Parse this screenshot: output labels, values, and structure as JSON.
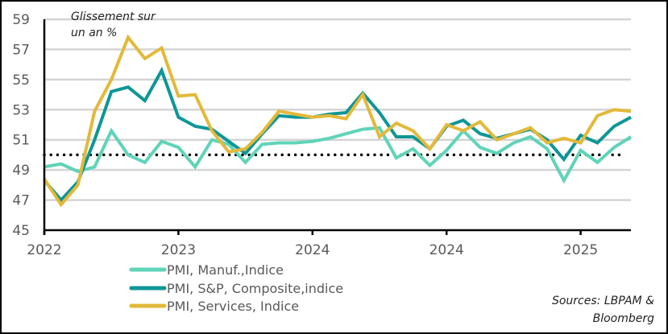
{
  "chart_data": {
    "type": "line",
    "title": "",
    "annotation": "Glissement sur un an %",
    "annotation_lines": [
      "Glissement sur",
      "un an %"
    ],
    "xlabel": "",
    "ylabel": "",
    "ylim": [
      45,
      59
    ],
    "yticks": [
      45,
      47,
      49,
      51,
      53,
      55,
      57,
      59
    ],
    "ytick_labels": [
      "45",
      "47",
      "49",
      "51",
      "53",
      "55",
      "57",
      "59"
    ],
    "xtick_labels": [
      "2022",
      "2023",
      "2024",
      "2024",
      "2025"
    ],
    "xtick_positions": [
      0,
      8,
      16,
      24,
      32
    ],
    "n_points": 36,
    "grid": "horizontal",
    "reference_line": {
      "value": 50,
      "style": "dotted",
      "color": "#000000"
    },
    "series": [
      {
        "name": "PMI, Manuf.,Indice",
        "color": "#5fd4b8",
        "values": [
          49.2,
          49.4,
          48.9,
          49.2,
          51.6,
          50.0,
          49.5,
          50.9,
          50.5,
          49.2,
          51.0,
          50.7,
          49.5,
          50.7,
          50.8,
          50.8,
          50.9,
          51.1,
          51.4,
          51.7,
          51.8,
          49.8,
          50.4,
          49.3,
          50.3,
          51.6,
          50.5,
          50.1,
          50.8,
          51.2,
          50.4,
          48.3,
          50.3,
          49.5,
          50.5,
          51.2
        ]
      },
      {
        "name": "PMI, S&P, Composite,indice",
        "color": "#0e9696",
        "values": [
          48.3,
          47.0,
          48.2,
          51.0,
          54.2,
          54.5,
          53.6,
          55.6,
          52.5,
          51.9,
          51.7,
          50.9,
          50.1,
          51.4,
          52.6,
          52.5,
          52.5,
          52.7,
          52.8,
          54.1,
          52.8,
          51.2,
          51.2,
          50.4,
          51.9,
          52.3,
          51.4,
          51.1,
          51.4,
          51.7,
          51.0,
          49.7,
          51.3,
          50.8,
          51.9,
          52.5
        ]
      },
      {
        "name": "PMI, Services, Indice",
        "color": "#e3b93b",
        "values": [
          48.4,
          46.7,
          48.0,
          52.9,
          55.0,
          57.8,
          56.4,
          57.1,
          53.9,
          54.0,
          51.6,
          50.2,
          50.4,
          51.5,
          52.9,
          52.7,
          52.5,
          52.6,
          52.4,
          54.0,
          51.2,
          52.1,
          51.6,
          50.4,
          52.0,
          51.6,
          52.2,
          51.0,
          51.4,
          51.8,
          50.8,
          51.1,
          50.8,
          52.6,
          53.0,
          52.9
        ]
      }
    ],
    "legend": {
      "placement": "bottom-left",
      "entries": [
        "PMI, Manuf.,Indice",
        "PMI, S&P, Composite,indice",
        "PMI, Services, Indice"
      ]
    },
    "source_lines": [
      "Sources: LBPAM &",
      "Bloomberg"
    ]
  }
}
